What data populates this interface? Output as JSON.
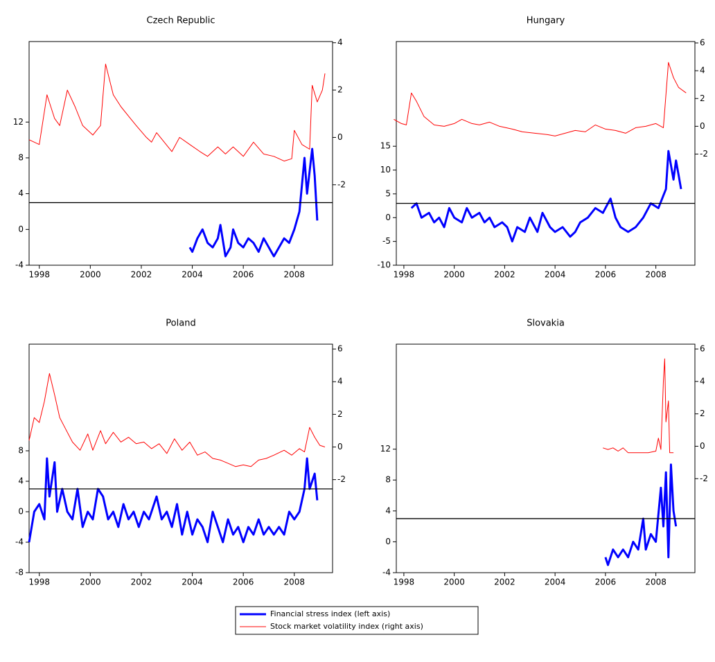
{
  "chart_data": [
    {
      "type": "line",
      "title": "Czech Republic",
      "xlim": [
        1997.6,
        2009.5
      ],
      "xticks": [
        1998,
        2000,
        2002,
        2004,
        2006,
        2008
      ],
      "ylim": [
        -4,
        21
      ],
      "yticks": [
        -4,
        0,
        4,
        8,
        12
      ],
      "y2lim": [
        -5.4,
        4.05
      ],
      "y2ticks": [
        -2,
        0,
        2,
        4
      ],
      "hline": 3,
      "series": [
        {
          "color": "#0000ff",
          "axis": "y",
          "x": [
            2003.9,
            2004.0,
            2004.2,
            2004.4,
            2004.6,
            2004.8,
            2005.0,
            2005.1,
            2005.3,
            2005.5,
            2005.6,
            2005.8,
            2006.0,
            2006.2,
            2006.4,
            2006.6,
            2006.8,
            2007.0,
            2007.2,
            2007.4,
            2007.6,
            2007.8,
            2008.0,
            2008.2,
            2008.4,
            2008.5,
            2008.7,
            2008.8,
            2008.9
          ],
          "values": [
            -2,
            -2.5,
            -1,
            0,
            -1.5,
            -2,
            -1,
            0.5,
            -3,
            -2,
            0,
            -1.5,
            -2,
            -1,
            -1.5,
            -2.5,
            -1,
            -2,
            -3,
            -2,
            -1,
            -1.5,
            0,
            2,
            8,
            4,
            9,
            6,
            1
          ]
        },
        {
          "color": "#ff0000",
          "axis": "y2",
          "x": [
            1997.6,
            1998.0,
            1998.3,
            1998.6,
            1998.8,
            1999.1,
            1999.4,
            1999.7,
            2000.1,
            2000.4,
            2000.6,
            2000.9,
            2001.2,
            2001.5,
            2001.8,
            2002.2,
            2002.4,
            2002.6,
            2002.9,
            2003.2,
            2003.5,
            2003.9,
            2004.3,
            2004.6,
            2005.0,
            2005.3,
            2005.6,
            2006.0,
            2006.4,
            2006.8,
            2007.2,
            2007.6,
            2007.9,
            2008.0,
            2008.3,
            2008.6,
            2008.7,
            2008.9,
            2009.1,
            2009.2
          ],
          "values": [
            -0.1,
            -0.3,
            1.8,
            0.8,
            0.5,
            2.0,
            1.3,
            0.5,
            0.1,
            0.5,
            3.1,
            1.8,
            1.3,
            0.9,
            0.5,
            0,
            -0.2,
            0.2,
            -0.2,
            -0.6,
            0,
            -0.3,
            -0.6,
            -0.8,
            -0.4,
            -0.7,
            -0.4,
            -0.8,
            -0.2,
            -0.7,
            -0.8,
            -1.0,
            -0.9,
            0.3,
            -0.3,
            -0.5,
            2.2,
            1.5,
            2.0,
            2.7
          ]
        }
      ]
    },
    {
      "type": "line",
      "title": "Hungary",
      "xlim": [
        1997.7,
        2009.55
      ],
      "xticks": [
        1998,
        2000,
        2002,
        2004,
        2006,
        2008
      ],
      "ylim": [
        -10,
        37
      ],
      "yticks": [
        -10,
        -5,
        0,
        5,
        10,
        15
      ],
      "y2lim": [
        -10,
        6.1
      ],
      "y2ticks": [
        -2,
        0,
        2,
        4,
        6
      ],
      "hline": 3,
      "series": [
        {
          "color": "#0000ff",
          "axis": "y",
          "x": [
            1998.3,
            1998.5,
            1998.7,
            1999.0,
            1999.2,
            1999.4,
            1999.6,
            1999.8,
            2000.0,
            2000.3,
            2000.5,
            2000.7,
            2001.0,
            2001.2,
            2001.4,
            2001.6,
            2001.9,
            2002.1,
            2002.3,
            2002.5,
            2002.8,
            2003.0,
            2003.3,
            2003.5,
            2003.8,
            2004.0,
            2004.3,
            2004.6,
            2004.8,
            2005.0,
            2005.3,
            2005.6,
            2005.9,
            2006.2,
            2006.4,
            2006.6,
            2006.9,
            2007.2,
            2007.5,
            2007.8,
            2008.1,
            2008.4,
            2008.5,
            2008.7,
            2008.8,
            2008.9,
            2009.0
          ],
          "values": [
            2,
            3,
            0,
            1,
            -1,
            0,
            -2,
            2,
            0,
            -1,
            2,
            0,
            1,
            -1,
            0,
            -2,
            -1,
            -2,
            -5,
            -2,
            -3,
            0,
            -3,
            1,
            -2,
            -3,
            -2,
            -4,
            -3,
            -1,
            0,
            2,
            1,
            4,
            0,
            -2,
            -3,
            -2,
            0,
            3,
            2,
            6,
            14,
            8,
            12,
            9,
            6
          ]
        },
        {
          "color": "#ff0000",
          "axis": "y2",
          "x": [
            1997.6,
            1997.9,
            1998.1,
            1998.3,
            1998.5,
            1998.8,
            1999.2,
            1999.6,
            2000.0,
            2000.3,
            2000.7,
            2001.0,
            2001.4,
            2001.8,
            2002.3,
            2002.7,
            2003.2,
            2003.7,
            2004.0,
            2004.4,
            2004.8,
            2005.2,
            2005.6,
            2006.0,
            2006.4,
            2006.8,
            2007.2,
            2007.6,
            2008.0,
            2008.3,
            2008.5,
            2008.7,
            2008.9,
            2009.2
          ],
          "values": [
            0.5,
            0.2,
            0.1,
            2.4,
            1.8,
            0.7,
            0.1,
            0,
            0.2,
            0.5,
            0.2,
            0.1,
            0.3,
            0,
            -0.2,
            -0.4,
            -0.5,
            -0.6,
            -0.7,
            -0.5,
            -0.3,
            -0.4,
            0.1,
            -0.2,
            -0.3,
            -0.5,
            -0.1,
            0,
            0.2,
            -0.1,
            4.6,
            3.5,
            2.8,
            2.4
          ]
        }
      ]
    },
    {
      "type": "line",
      "title": "Poland",
      "xlim": [
        1997.6,
        2009.5
      ],
      "xticks": [
        1998,
        2000,
        2002,
        2004,
        2006,
        2008
      ],
      "ylim": [
        -8,
        22
      ],
      "yticks": [
        -8,
        -4,
        0,
        4,
        8
      ],
      "y2lim": [
        -7.7,
        6.3
      ],
      "y2ticks": [
        -2,
        0,
        2,
        4,
        6
      ],
      "hline": 3,
      "series": [
        {
          "color": "#0000ff",
          "axis": "y",
          "x": [
            1997.6,
            1997.8,
            1998.0,
            1998.2,
            1998.3,
            1998.4,
            1998.6,
            1998.7,
            1998.9,
            1999.1,
            1999.3,
            1999.5,
            1999.7,
            1999.9,
            2000.1,
            2000.3,
            2000.5,
            2000.7,
            2000.9,
            2001.1,
            2001.3,
            2001.5,
            2001.7,
            2001.9,
            2002.1,
            2002.3,
            2002.6,
            2002.8,
            2003.0,
            2003.2,
            2003.4,
            2003.6,
            2003.8,
            2004.0,
            2004.2,
            2004.4,
            2004.6,
            2004.8,
            2005.0,
            2005.2,
            2005.4,
            2005.6,
            2005.8,
            2006.0,
            2006.2,
            2006.4,
            2006.6,
            2006.8,
            2007.0,
            2007.2,
            2007.4,
            2007.6,
            2007.8,
            2008.0,
            2008.2,
            2008.4,
            2008.5,
            2008.6,
            2008.8,
            2008.9
          ],
          "values": [
            -4,
            0,
            1,
            -1,
            7,
            2,
            6.5,
            0,
            3,
            0,
            -1,
            3,
            -2,
            0,
            -1,
            3,
            2,
            -1,
            0,
            -2,
            1,
            -1,
            0,
            -2,
            0,
            -1,
            2,
            -1,
            0,
            -2,
            1,
            -3,
            0,
            -3,
            -1,
            -2,
            -4,
            0,
            -2,
            -4,
            -1,
            -3,
            -2,
            -4,
            -2,
            -3,
            -1,
            -3,
            -2,
            -3,
            -2,
            -3,
            0,
            -1,
            0,
            3,
            7,
            3,
            5,
            1.5
          ]
        },
        {
          "color": "#ff0000",
          "axis": "y2",
          "x": [
            1997.6,
            1997.8,
            1998.0,
            1998.2,
            1998.4,
            1998.6,
            1998.8,
            1999.0,
            1999.3,
            1999.6,
            1999.9,
            2000.1,
            2000.4,
            2000.6,
            2000.9,
            2001.2,
            2001.5,
            2001.8,
            2002.1,
            2002.4,
            2002.7,
            2003.0,
            2003.3,
            2003.6,
            2003.9,
            2004.2,
            2004.5,
            2004.8,
            2005.1,
            2005.4,
            2005.7,
            2006.0,
            2006.3,
            2006.6,
            2006.9,
            2007.2,
            2007.6,
            2007.9,
            2008.2,
            2008.4,
            2008.6,
            2008.8,
            2009.0,
            2009.2
          ],
          "values": [
            0.4,
            1.8,
            1.5,
            2.8,
            4.5,
            3.2,
            1.8,
            1.2,
            0.3,
            -0.2,
            0.8,
            -0.2,
            1.0,
            0.2,
            0.9,
            0.3,
            0.6,
            0.2,
            0.3,
            -0.1,
            0.2,
            -0.4,
            0.5,
            -0.2,
            0.3,
            -0.5,
            -0.3,
            -0.7,
            -0.8,
            -1.0,
            -1.2,
            -1.1,
            -1.2,
            -0.8,
            -0.7,
            -0.5,
            -0.2,
            -0.5,
            -0.1,
            -0.3,
            1.2,
            0.6,
            0.1,
            0
          ]
        }
      ]
    },
    {
      "type": "line",
      "title": "Slovakia",
      "xlim": [
        1997.7,
        2009.55
      ],
      "xticks": [
        1998,
        2000,
        2002,
        2004,
        2006,
        2008
      ],
      "ylim": [
        -4,
        25.6
      ],
      "yticks": [
        -4,
        0,
        4,
        8,
        12
      ],
      "y2lim": [
        -7.8,
        6.3
      ],
      "y2ticks": [
        -2,
        0,
        2,
        4,
        6
      ],
      "hline": 3,
      "series": [
        {
          "color": "#0000ff",
          "axis": "y",
          "x": [
            2006.0,
            2006.1,
            2006.3,
            2006.5,
            2006.7,
            2006.9,
            2007.1,
            2007.3,
            2007.5,
            2007.6,
            2007.8,
            2008.0,
            2008.2,
            2008.3,
            2008.4,
            2008.5,
            2008.6,
            2008.7,
            2008.8
          ],
          "values": [
            -2,
            -3,
            -1,
            -2,
            -1,
            -2,
            0,
            -1,
            3,
            -1,
            1,
            0,
            7,
            2,
            9,
            -2,
            10,
            4,
            2
          ]
        },
        {
          "color": "#ff0000",
          "axis": "y2",
          "x": [
            2005.9,
            2006.1,
            2006.3,
            2006.5,
            2006.7,
            2006.9,
            2007.3,
            2007.7,
            2008.0,
            2008.1,
            2008.2,
            2008.3,
            2008.35,
            2008.4,
            2008.5,
            2008.55,
            2008.7
          ],
          "values": [
            -0.1,
            -0.2,
            -0.1,
            -0.3,
            -0.1,
            -0.4,
            -0.4,
            -0.4,
            -0.3,
            0.5,
            -0.2,
            4.0,
            5.4,
            1.5,
            2.8,
            -0.4,
            -0.4
          ]
        }
      ]
    }
  ],
  "legend": [
    {
      "label": "Financial stress index (left axis)",
      "color": "#0000ff"
    },
    {
      "label": "Stock market volatility index (right axis)",
      "color": "#ff0000"
    }
  ]
}
